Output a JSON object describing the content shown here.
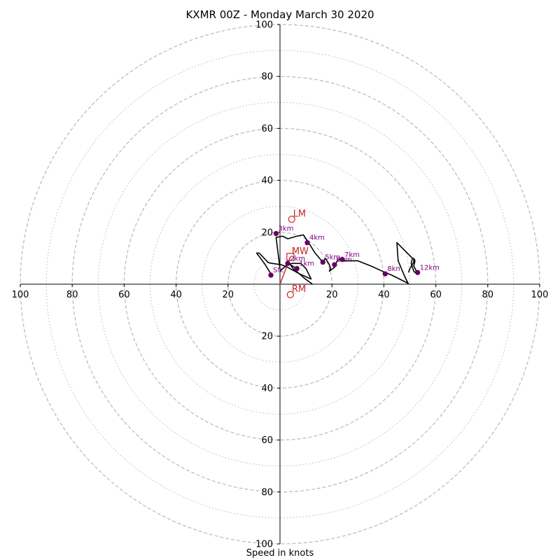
{
  "chart_data": {
    "type": "hodograph",
    "title": "KXMR 00Z - Monday March 30 2020",
    "xlabel": "Speed in knots",
    "range": 100,
    "ring_major": [
      20,
      40,
      60,
      80,
      100
    ],
    "ring_minor": [
      10,
      30,
      50,
      70,
      90
    ],
    "tick_labels": {
      "x_left": [
        "100",
        "80",
        "60",
        "40",
        "20"
      ],
      "x_right": [
        "20",
        "40",
        "60",
        "80",
        "100"
      ],
      "y_up": [
        "20",
        "40",
        "60",
        "80",
        "100"
      ],
      "y_down": [
        "20",
        "40",
        "60",
        "80",
        "100"
      ]
    },
    "trace_segments": [
      [
        [
          12.5,
          0.0
        ],
        [
          9.5,
          2.2
        ],
        [
          7.5,
          4.0
        ],
        [
          3.0,
          6.5
        ],
        [
          0.5,
          7.5
        ],
        [
          -3.0,
          8.0
        ],
        [
          -4.5,
          8.3
        ],
        [
          -8.0,
          12.0
        ],
        [
          -9.0,
          12.0
        ],
        [
          -6.0,
          8.0
        ],
        [
          -3.5,
          4.0
        ]
      ],
      [
        [
          0.0,
          5.0
        ],
        [
          2.2,
          7.0
        ],
        [
          4.5,
          8.0
        ],
        [
          8.0,
          8.0
        ],
        [
          10.0,
          6.0
        ],
        [
          12.0,
          2.0
        ],
        [
          7.5,
          4.0
        ],
        [
          5.0,
          6.0
        ],
        [
          4.0,
          7.5
        ],
        [
          6.5,
          6.0
        ]
      ],
      [
        [
          0.0,
          6.0
        ],
        [
          -1.5,
          18.0
        ],
        [
          1.0,
          18.5
        ],
        [
          3.0,
          17.5
        ],
        [
          6.5,
          18.5
        ],
        [
          9.0,
          19.0
        ],
        [
          11.0,
          16.0
        ],
        [
          13.5,
          12.0
        ],
        [
          16.5,
          8.5
        ],
        [
          17.5,
          10.0
        ],
        [
          19.0,
          7.5
        ],
        [
          19.5,
          6.0
        ],
        [
          19.0,
          5.0
        ],
        [
          21.0,
          6.5
        ],
        [
          22.0,
          9.0
        ],
        [
          23.0,
          9.5
        ],
        [
          24.0,
          9.0
        ],
        [
          27.0,
          9.0
        ],
        [
          30.0,
          9.0
        ],
        [
          35.0,
          7.0
        ],
        [
          40.5,
          4.5
        ],
        [
          43.0,
          3.5
        ],
        [
          46.0,
          2.0
        ],
        [
          49.0,
          0.5
        ],
        [
          49.5,
          0.0
        ]
      ],
      [
        [
          49.5,
          0.0
        ],
        [
          48.0,
          3.0
        ],
        [
          45.5,
          9.0
        ],
        [
          45.0,
          16.0
        ],
        [
          48.0,
          13.0
        ],
        [
          51.0,
          10.0
        ],
        [
          50.5,
          8.0
        ],
        [
          51.5,
          5.0
        ],
        [
          52.0,
          4.5
        ],
        [
          52.5,
          5.0
        ],
        [
          51.5,
          7.0
        ],
        [
          52.0,
          9.0
        ],
        [
          51.5,
          10.0
        ],
        [
          51.5,
          8.5
        ],
        [
          50.0,
          6.0
        ],
        [
          49.5,
          4.5
        ]
      ]
    ],
    "height_points": [
      {
        "label": "1km",
        "u": 6.5,
        "v": 6.0
      },
      {
        "label": "2km",
        "u": 3.0,
        "v": 8.0
      },
      {
        "label": "3km",
        "u": -1.5,
        "v": 19.5
      },
      {
        "label": "4km",
        "u": 10.5,
        "v": 16.0
      },
      {
        "label": "5km",
        "u": 16.5,
        "v": 8.5
      },
      {
        "label": "6km",
        "u": 21.0,
        "v": 7.5
      },
      {
        "label": "7km",
        "u": 24.0,
        "v": 9.5
      },
      {
        "label": "8km",
        "u": 40.5,
        "v": 4.0
      },
      {
        "label": "12km",
        "u": 53.0,
        "v": 4.5
      },
      {
        "label": "Sfc",
        "u": -3.5,
        "v": 3.5
      }
    ],
    "storm_motions": {
      "LM": {
        "label": "LM",
        "u": 4.5,
        "v": 25.0
      },
      "MW": {
        "label": "MW",
        "u": 4.0,
        "v": 10.5
      },
      "RM": {
        "label": "RM",
        "u": 4.0,
        "v": -4.0
      }
    },
    "colors": {
      "trace": "#000000",
      "point": "#660066",
      "point_label": "#800080",
      "storm": "#cc2222",
      "grid": "#b8b8b8",
      "axes": "#000000"
    }
  }
}
